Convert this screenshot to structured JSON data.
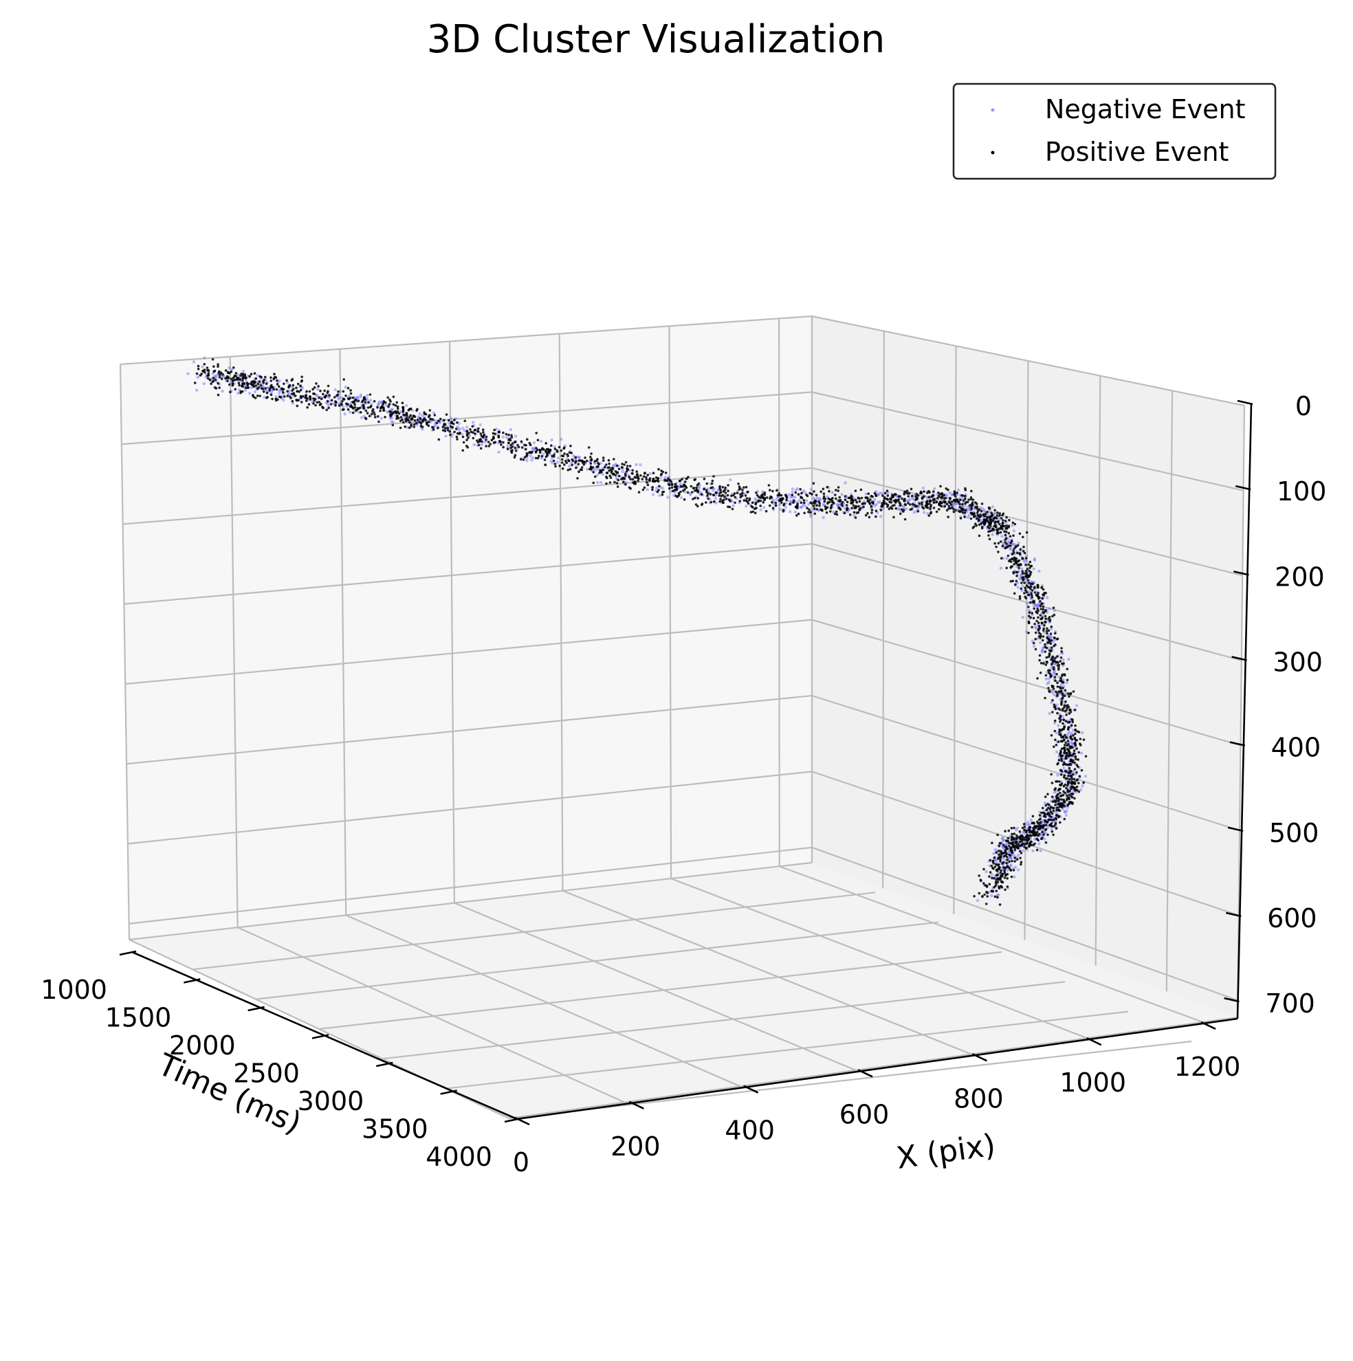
{
  "chart_data": {
    "type": "scatter",
    "projection": "3d",
    "title": "3D Cluster Visualization",
    "xlabel": "Time (ms)",
    "ylabel": "X (pix)",
    "zlabel": "",
    "time_ticks": [
      "1000",
      "1500",
      "2000",
      "2500",
      "3000",
      "3500",
      "4000"
    ],
    "x_ticks": [
      "0",
      "200",
      "400",
      "600",
      "800",
      "1000",
      "1200"
    ],
    "y_ticks": [
      "0",
      "100",
      "200",
      "300",
      "400",
      "500",
      "600",
      "700"
    ],
    "time_range": [
      1000,
      4000
    ],
    "x_range": [
      0,
      1260
    ],
    "y_range": [
      0,
      720
    ],
    "y_inverted": true,
    "grid": true,
    "legend_position": "top-right",
    "series": [
      {
        "name": "Negative Event",
        "color": "#6666ff",
        "path": [
          [
            1050,
            120,
            20
          ],
          [
            1200,
            220,
            40
          ],
          [
            1400,
            330,
            55
          ],
          [
            1700,
            430,
            75
          ],
          [
            2000,
            540,
            95
          ],
          [
            2300,
            640,
            115
          ],
          [
            2600,
            740,
            125
          ],
          [
            2900,
            830,
            120
          ],
          [
            3150,
            910,
            110
          ],
          [
            3350,
            980,
            100
          ],
          [
            3500,
            1030,
            130
          ],
          [
            3600,
            1060,
            200
          ],
          [
            3680,
            1080,
            280
          ],
          [
            3750,
            1090,
            360
          ],
          [
            3800,
            1080,
            420
          ],
          [
            3850,
            1020,
            460
          ],
          [
            3900,
            950,
            470
          ],
          [
            3950,
            900,
            520
          ]
        ]
      },
      {
        "name": "Positive Event",
        "color": "#000000",
        "path": [
          [
            1050,
            120,
            20
          ],
          [
            1200,
            220,
            40
          ],
          [
            1400,
            330,
            55
          ],
          [
            1700,
            430,
            75
          ],
          [
            2000,
            540,
            95
          ],
          [
            2300,
            640,
            115
          ],
          [
            2600,
            740,
            125
          ],
          [
            2900,
            830,
            120
          ],
          [
            3150,
            910,
            110
          ],
          [
            3350,
            980,
            100
          ],
          [
            3500,
            1030,
            130
          ],
          [
            3600,
            1060,
            200
          ],
          [
            3680,
            1080,
            280
          ],
          [
            3750,
            1090,
            360
          ],
          [
            3800,
            1080,
            420
          ],
          [
            3850,
            1020,
            460
          ],
          [
            3900,
            950,
            470
          ],
          [
            3950,
            900,
            520
          ]
        ]
      }
    ]
  }
}
